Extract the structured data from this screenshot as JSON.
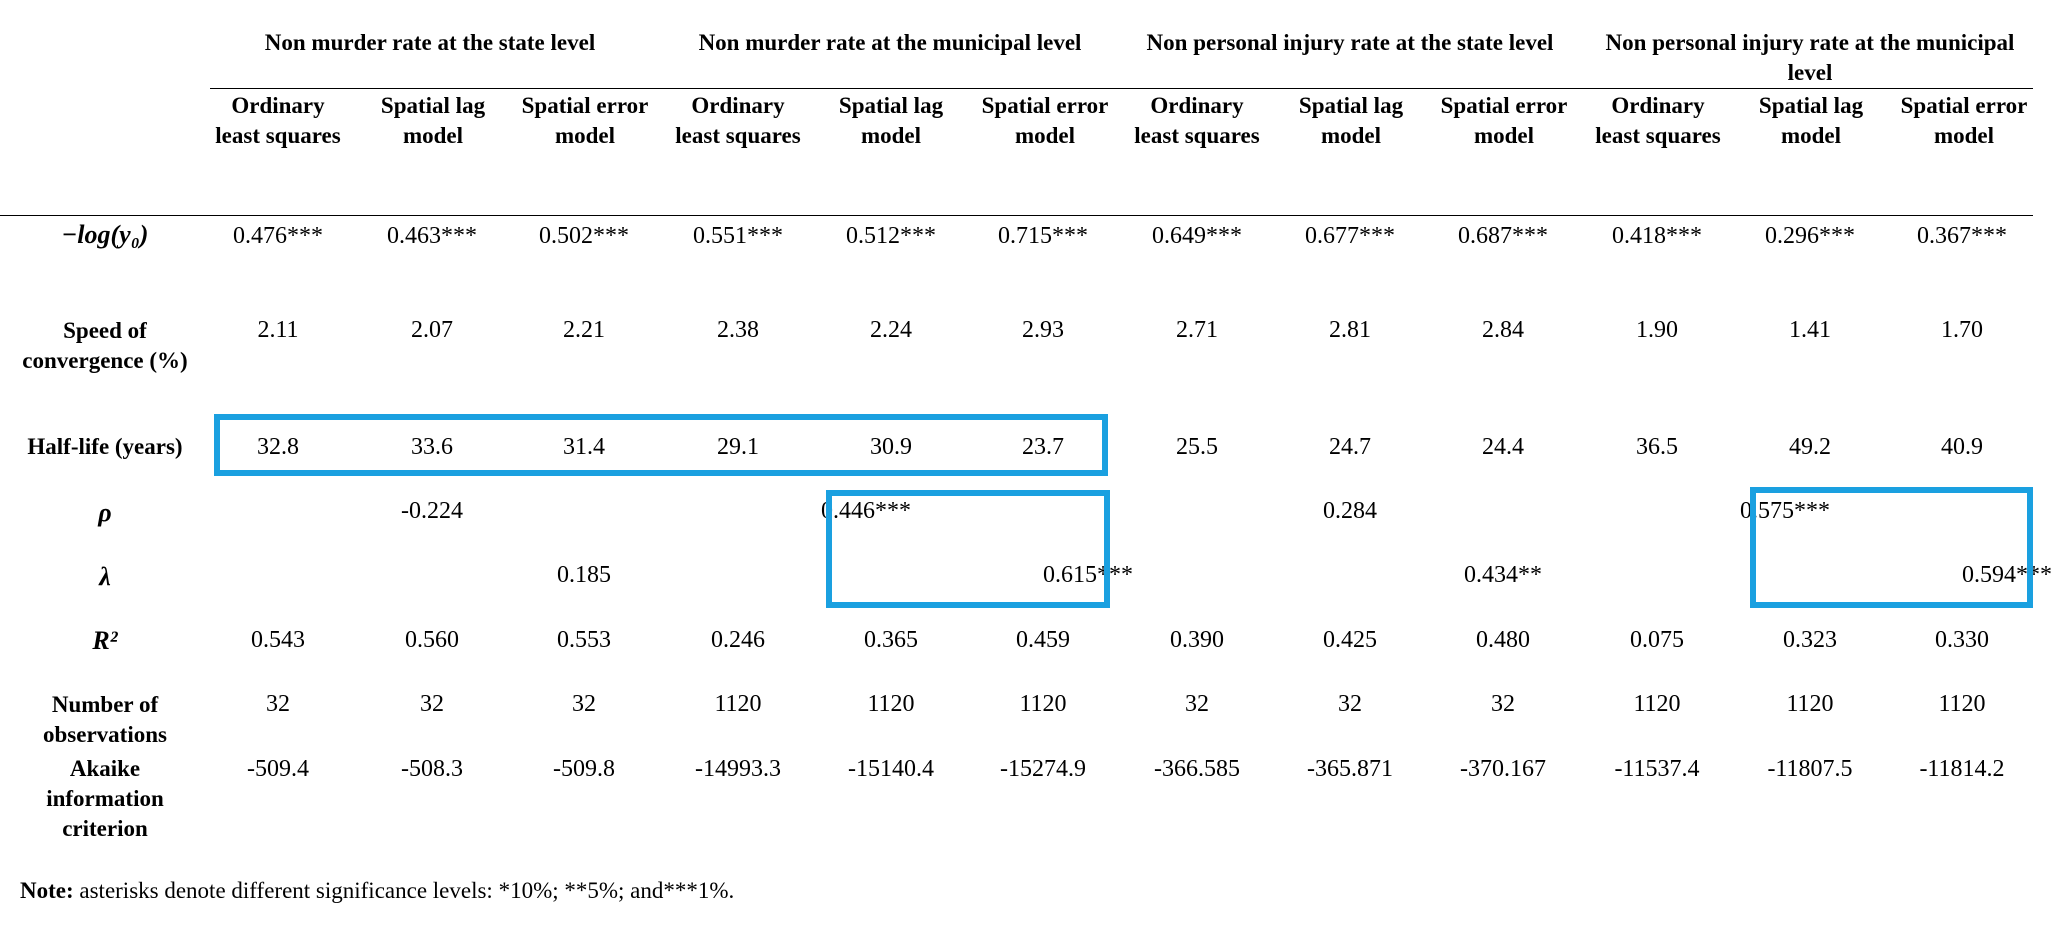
{
  "groups": [
    {
      "title": "Non murder rate at the state level"
    },
    {
      "title": "Non murder rate at the municipal level"
    },
    {
      "title": "Non personal injury rate at the state level"
    },
    {
      "title": "Non personal injury rate at the municipal level"
    }
  ],
  "columns": [
    "Ordinary least squares",
    "Spatial lag model",
    "Spatial error model",
    "Ordinary least squares",
    "Spatial lag model",
    "Spatial error model",
    "Ordinary least squares",
    "Spatial lag model",
    "Spatial error model",
    "Ordinary least squares",
    "Spatial lag model",
    "Spatial error model"
  ],
  "rows": {
    "logy": {
      "label": "−log(y₀)",
      "values": [
        "0.476***",
        "0.463***",
        "0.502***",
        "0.551***",
        "0.512***",
        "0.715***",
        "0.649***",
        "0.677***",
        "0.687***",
        "0.418***",
        "0.296***",
        "0.367***"
      ]
    },
    "speed": {
      "label": "Speed of convergence (%)",
      "values": [
        "2.11",
        "2.07",
        "2.21",
        "2.38",
        "2.24",
        "2.93",
        "2.71",
        "2.81",
        "2.84",
        "1.90",
        "1.41",
        "1.70"
      ]
    },
    "halflife": {
      "label": "Half-life (years)",
      "values": [
        "32.8",
        "33.6",
        "31.4",
        "29.1",
        "30.9",
        "23.7",
        "25.5",
        "24.7",
        "24.4",
        "36.5",
        "49.2",
        "40.9"
      ]
    },
    "rho": {
      "label": "ρ",
      "values": [
        "",
        "-0.224",
        "",
        "",
        "0.446***",
        "",
        "",
        "0.284",
        "",
        "",
        "0.575***",
        ""
      ]
    },
    "lambda": {
      "label": "λ",
      "values": [
        "",
        "",
        "0.185",
        "",
        "",
        "0.615***",
        "",
        "",
        "0.434**",
        "",
        "",
        "0.594***"
      ]
    },
    "r2": {
      "label": "R²",
      "values": [
        "0.543",
        "0.560",
        "0.553",
        "0.246",
        "0.365",
        "0.459",
        "0.390",
        "0.425",
        "0.480",
        "0.075",
        "0.323",
        "0.330"
      ]
    },
    "nobs": {
      "label": "Number of observations",
      "values": [
        "32",
        "32",
        "32",
        "1120",
        "1120",
        "1120",
        "32",
        "32",
        "32",
        "1120",
        "1120",
        "1120"
      ]
    },
    "aic": {
      "label": "Akaike information criterion",
      "values": [
        "-509.4",
        "-508.3",
        "-509.8",
        "-14993.3",
        "-15140.4",
        "-15274.9",
        "-366.585",
        "-365.871",
        "-370.167",
        "-11537.4",
        "-11807.5",
        "-11814.2"
      ]
    }
  },
  "note": {
    "bold": "Note:",
    "text": " asterisks denote different significance levels: *10%; **5%; and***1%."
  },
  "highlight_color": "#1aa0e0"
}
